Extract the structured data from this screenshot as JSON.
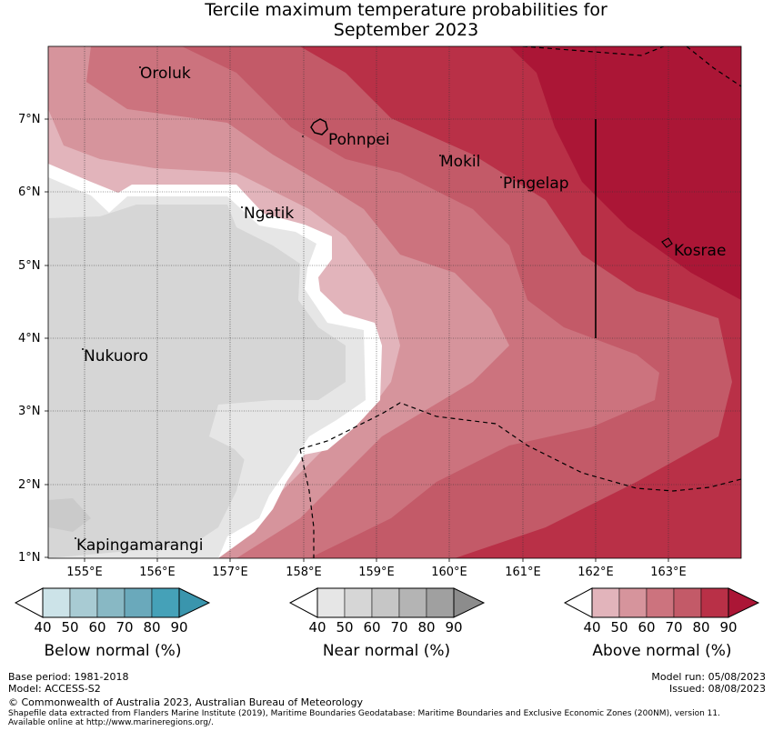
{
  "title": {
    "line1": "Tercile maximum temperature probabilities for",
    "line2": "September 2023"
  },
  "axes": {
    "lat_labels": [
      "7°N",
      "6°N",
      "5°N",
      "4°N",
      "3°N",
      "2°N",
      "1°N"
    ],
    "lon_labels": [
      "155°E",
      "156°E",
      "157°E",
      "158°E",
      "159°E",
      "160°E",
      "161°E",
      "162°E",
      "163°E"
    ]
  },
  "places": [
    {
      "name": "Oroluk"
    },
    {
      "name": "Pohnpei"
    },
    {
      "name": "Mokil"
    },
    {
      "name": "Pingelap"
    },
    {
      "name": "Ngatik"
    },
    {
      "name": "Kosrae"
    },
    {
      "name": "Nukuoro"
    },
    {
      "name": "Kapingamarangi"
    }
  ],
  "colorbars": [
    {
      "title": "Below normal (%)",
      "ticks": [
        "40",
        "50",
        "60",
        "70",
        "80",
        "90"
      ],
      "colors": [
        "#ffffff",
        "#cce3e8",
        "#a8cbd3",
        "#88b8c4",
        "#6aa9bb",
        "#45a1b8",
        "#3a95ad"
      ]
    },
    {
      "title": "Near normal (%)",
      "ticks": [
        "40",
        "50",
        "60",
        "70",
        "80",
        "90"
      ],
      "colors": [
        "#ffffff",
        "#e6e6e6",
        "#d6d6d6",
        "#c6c6c6",
        "#b4b4b4",
        "#a0a0a0",
        "#8c8c8c"
      ]
    },
    {
      "title": "Above normal (%)",
      "ticks": [
        "40",
        "50",
        "60",
        "70",
        "80",
        "90"
      ],
      "colors": [
        "#ffffff",
        "#e2b4bb",
        "#d6949c",
        "#cc737e",
        "#c35a68",
        "#b93047",
        "#ab1636"
      ]
    }
  ],
  "footer": {
    "base_period": "Base period: 1981-2018",
    "model": "Model: ACCESS-S2",
    "model_run": "Model run: 05/08/2023",
    "issued": "Issued: 08/08/2023",
    "copyright": "© Commonwealth of Australia 2023, Australian Bureau of Meteorology",
    "shapefile_line1": "Shapefile data extracted from Flanders Marine Institute (2019), Maritime Boundaries Geodatabase: Maritime Boundaries and Exclusive Economic Zones (200NM), version 11.",
    "shapefile_line2": "Available online at http://www.marineregions.org/."
  }
}
